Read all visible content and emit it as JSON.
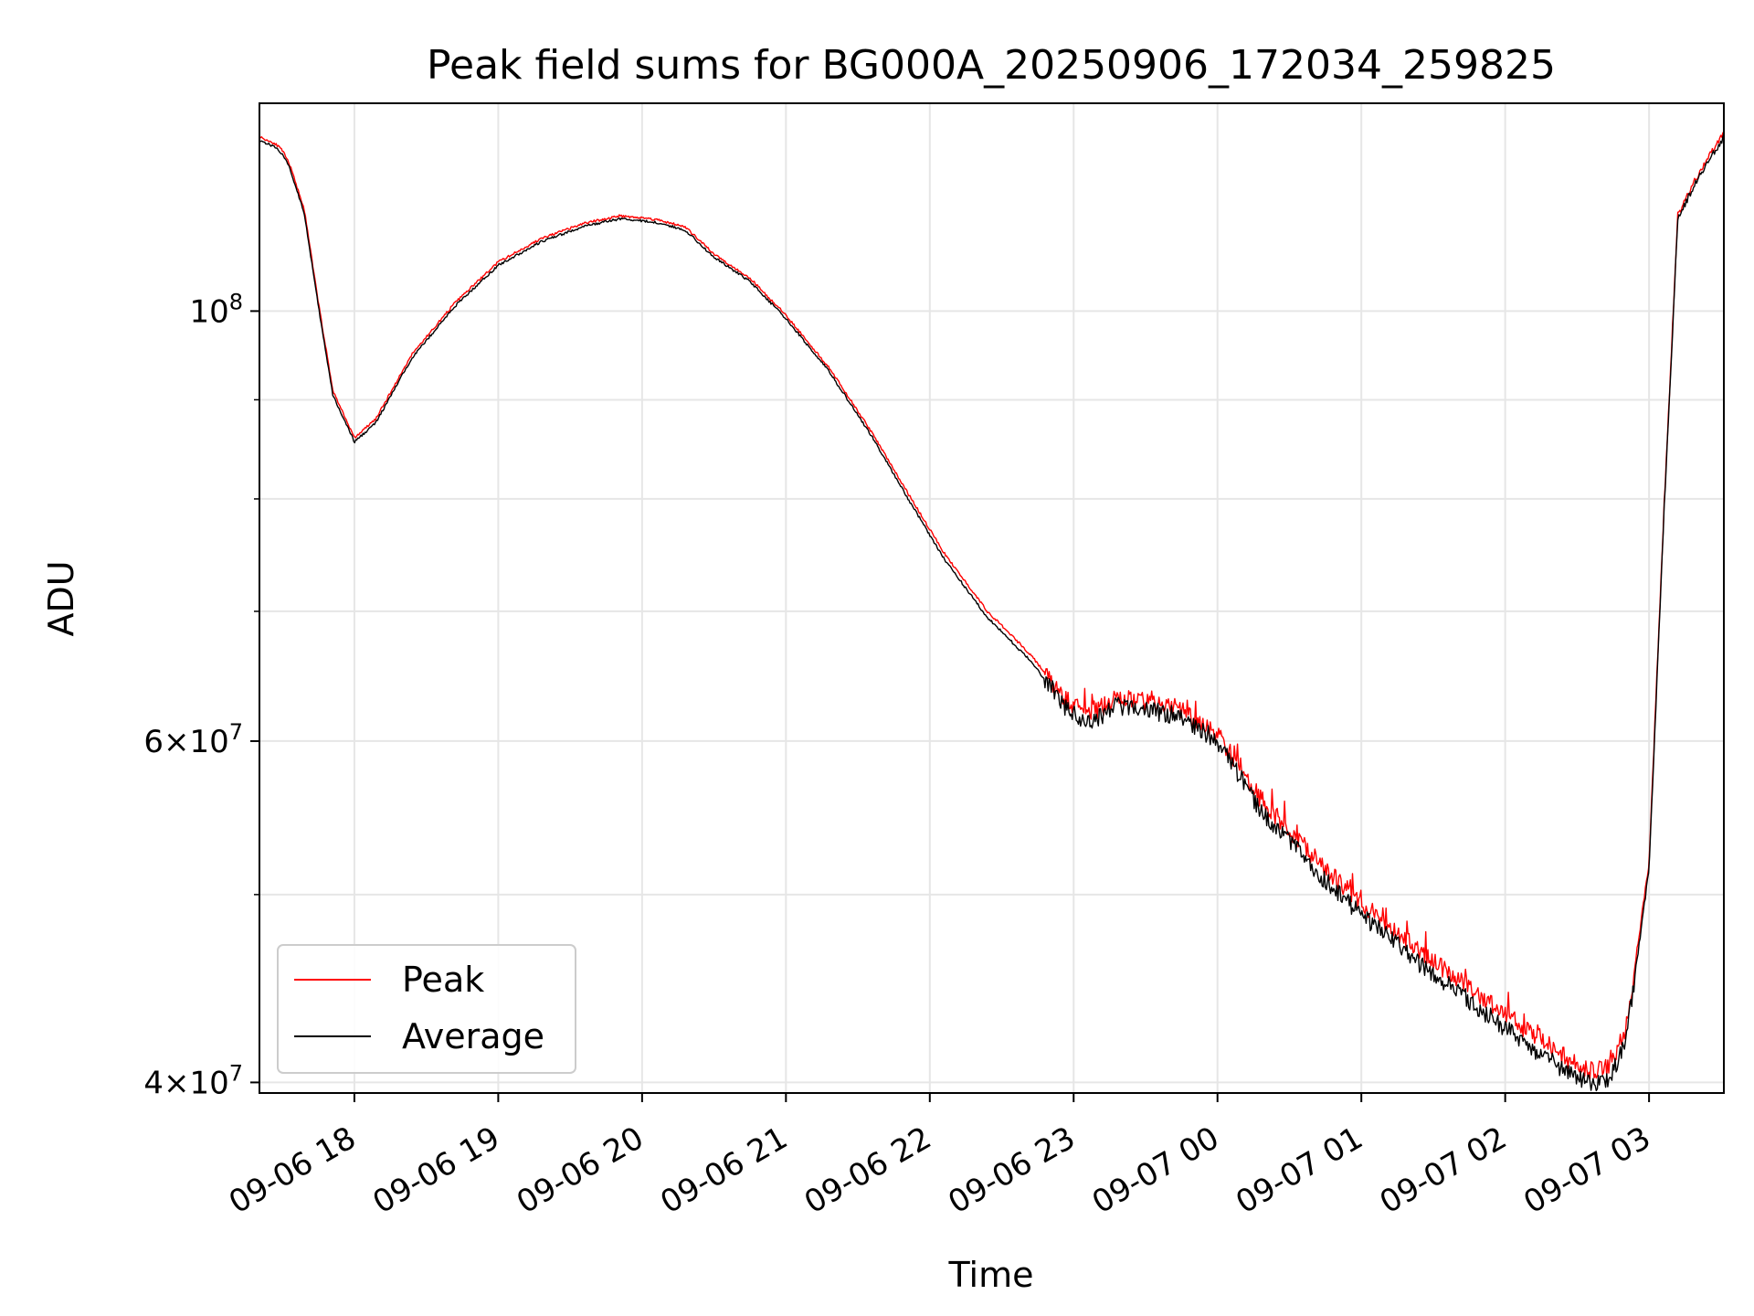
{
  "chart_data": {
    "type": "line",
    "title": "Peak field sums for BG000A_20250906_172034_259825",
    "xlabel": "Time",
    "ylabel": "ADU",
    "yscale": "log",
    "ylim": [
      39500000,
      128000000
    ],
    "xlim_hours": [
      17.34,
      27.52
    ],
    "grid": true,
    "legend_position": "lower-left",
    "x_ticks": [
      {
        "hour": 18,
        "label": "09-06 18"
      },
      {
        "hour": 19,
        "label": "09-06 19"
      },
      {
        "hour": 20,
        "label": "09-06 20"
      },
      {
        "hour": 21,
        "label": "09-06 21"
      },
      {
        "hour": 22,
        "label": "09-06 22"
      },
      {
        "hour": 23,
        "label": "09-06 23"
      },
      {
        "hour": 24,
        "label": "09-07 00"
      },
      {
        "hour": 25,
        "label": "09-07 01"
      },
      {
        "hour": 26,
        "label": "09-07 02"
      },
      {
        "hour": 27,
        "label": "09-07 03"
      }
    ],
    "y_major_ticks": [
      {
        "value": 40000000,
        "mant": "4",
        "exp": "7"
      },
      {
        "value": 60000000,
        "mant": "6",
        "exp": "7"
      },
      {
        "value": 100000000,
        "mant": "",
        "exp": "8"
      }
    ],
    "y_minor_grid": [
      50000000,
      70000000,
      80000000,
      90000000
    ],
    "tick_base": "10",
    "times_sign": "×",
    "series": [
      {
        "name": "Peak",
        "color": "#ff0000",
        "noise_offset": 0.35,
        "hours": [
          17.34,
          17.45,
          17.5,
          17.55,
          17.65,
          17.75,
          17.85,
          18.0,
          18.15,
          18.4,
          18.7,
          19.0,
          19.3,
          19.6,
          19.85,
          20.1,
          20.3,
          20.5,
          20.75,
          21.0,
          21.3,
          21.6,
          21.85,
          22.1,
          22.4,
          22.7,
          22.95,
          23.1,
          23.3,
          23.55,
          23.75,
          24.0,
          24.3,
          24.7,
          25.0,
          25.4,
          25.8,
          26.1,
          26.3,
          26.5,
          26.62,
          26.7,
          26.78,
          26.85,
          27.0,
          27.1,
          27.2,
          27.35,
          27.52
        ],
        "values": [
          123000000,
          122000000,
          121000000,
          119000000,
          113000000,
          101000000,
          91000000,
          86000000,
          88000000,
          95000000,
          101000000,
          106000000,
          109000000,
          111000000,
          112000000,
          111500000,
          110500000,
          107000000,
          104000000,
          99500000,
          93500000,
          86500000,
          80500000,
          75000000,
          70000000,
          66500000,
          63000000,
          61800000,
          63200000,
          62800000,
          62300000,
          60500000,
          56000000,
          52000000,
          49500000,
          46800000,
          44500000,
          42800000,
          41800000,
          40800000,
          40500000,
          40700000,
          41500000,
          43000000,
          52000000,
          78000000,
          112000000,
          118000000,
          123500000
        ]
      },
      {
        "name": "Average",
        "color": "#000000",
        "noise_offset": -0.35,
        "hours": [
          17.34,
          17.45,
          17.5,
          17.55,
          17.65,
          17.75,
          17.85,
          18.0,
          18.15,
          18.4,
          18.7,
          19.0,
          19.3,
          19.6,
          19.85,
          20.1,
          20.3,
          20.5,
          20.75,
          21.0,
          21.3,
          21.6,
          21.85,
          22.1,
          22.4,
          22.7,
          22.95,
          23.1,
          23.3,
          23.55,
          23.75,
          24.0,
          24.3,
          24.7,
          25.0,
          25.4,
          25.8,
          26.1,
          26.3,
          26.5,
          26.62,
          26.7,
          26.78,
          26.85,
          27.0,
          27.1,
          27.2,
          27.35,
          27.52
        ],
        "values": [
          122500000,
          121500000,
          120500000,
          118500000,
          112500000,
          100500000,
          90500000,
          85600000,
          87600000,
          94600000,
          100600000,
          105600000,
          108600000,
          110600000,
          111600000,
          111100000,
          110100000,
          106600000,
          103600000,
          99100000,
          93100000,
          86100000,
          80000000,
          74500000,
          69500000,
          66000000,
          62400000,
          61200000,
          62600000,
          62200000,
          61800000,
          60000000,
          55300000,
          51300000,
          48800000,
          46100000,
          43800000,
          42100000,
          41100000,
          40200000,
          39900000,
          40100000,
          40900000,
          42500000,
          51500000,
          77500000,
          111500000,
          117500000,
          123000000
        ]
      }
    ]
  }
}
